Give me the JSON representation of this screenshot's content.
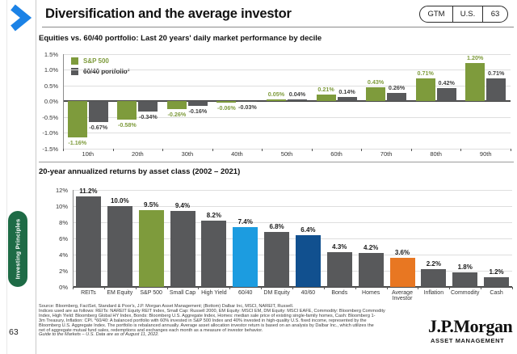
{
  "header": {
    "title": "Diversification and the average investor",
    "badge": {
      "gtm": "GTM",
      "region": "U.S.",
      "page": "63"
    }
  },
  "sidebar": {
    "tab_label": "Investing Principles",
    "page_number": "63"
  },
  "colors": {
    "chevron_blue": "#1B82E6",
    "tab_green": "#1E6B46",
    "sp500_green": "#7E9B3C",
    "portfolio_gray": "#58595B",
    "blue_6040": "#1C9CE0",
    "navy_4060": "#11508F",
    "orange_avg_investor": "#E87722"
  },
  "chart_data": [
    {
      "type": "bar",
      "title": "Equities vs. 60/40 portfolio: Last 20 years' daily market performance by decile",
      "categories": [
        "10th",
        "20th",
        "30th",
        "40th",
        "50th",
        "60th",
        "70th",
        "80th",
        "90th"
      ],
      "series": [
        {
          "name": "S&P 500",
          "color": "#7E9B3C",
          "values": [
            -1.16,
            -0.58,
            -0.26,
            -0.06,
            0.05,
            0.21,
            0.43,
            0.71,
            1.2
          ],
          "labels": [
            "-1.16%",
            "-0.58%",
            "-0.26%",
            "-0.06%",
            "0.05%",
            "0.21%",
            "0.43%",
            "0.71%",
            "1.20%"
          ]
        },
        {
          "name": "60/40 portfolio*",
          "color": "#58595B",
          "values": [
            -0.67,
            -0.34,
            -0.16,
            -0.03,
            0.04,
            0.14,
            0.26,
            0.42,
            0.71
          ],
          "labels": [
            "-0.67%",
            "-0.34%",
            "-0.16%",
            "-0.03%",
            "0.04%",
            "0.14%",
            "0.26%",
            "0.42%",
            "0.71%"
          ]
        }
      ],
      "ylim": [
        -1.5,
        1.5
      ],
      "ytick_values": [
        1.5,
        1.0,
        0.5,
        0.0,
        -0.5,
        -1.0,
        -1.5
      ],
      "ytick_labels": [
        "1.5%",
        "1.0%",
        "0.5%",
        "0.0%",
        "-0.5%",
        "-1.0%",
        "-1.5%"
      ],
      "grid": true,
      "legend_position": "top-left"
    },
    {
      "type": "bar",
      "title": "20-year annualized returns by asset class (2002 – 2021)",
      "categories": [
        "REITs",
        "EM Equity",
        "S&P 500",
        "Small Cap",
        "High Yield",
        "60/40",
        "DM Equity",
        "40/60",
        "Bonds",
        "Homes",
        "Average Investor",
        "Inflation",
        "Commodity",
        "Cash"
      ],
      "values": [
        11.2,
        10.0,
        9.5,
        9.4,
        8.2,
        7.4,
        6.8,
        6.4,
        4.3,
        4.2,
        3.6,
        2.2,
        1.8,
        1.2
      ],
      "labels": [
        "11.2%",
        "10.0%",
        "9.5%",
        "9.4%",
        "8.2%",
        "7.4%",
        "6.8%",
        "6.4%",
        "4.3%",
        "4.2%",
        "3.6%",
        "2.2%",
        "1.8%",
        "1.2%"
      ],
      "bar_colors": [
        "#58595B",
        "#58595B",
        "#7E9B3C",
        "#58595B",
        "#58595B",
        "#1C9CE0",
        "#58595B",
        "#11508F",
        "#58595B",
        "#58595B",
        "#E87722",
        "#58595B",
        "#58595B",
        "#58595B"
      ],
      "ylim": [
        0,
        12
      ],
      "ytick_values": [
        12,
        10,
        8,
        6,
        4,
        2,
        0
      ],
      "ytick_labels": [
        "12%",
        "10%",
        "8%",
        "6%",
        "4%",
        "2%",
        "0%"
      ],
      "grid": true
    }
  ],
  "footer": {
    "source_lines": [
      "Source: Bloomberg, FactSet, Standard & Poor's, J.P. Morgan Asset Management; (Bottom) Dalbar Inc, MSCI, NAREIT, Russell.",
      "Indices used are as follows: REITs: NAREIT Equity REIT Index, Small Cap: Russell 2000, EM Equity: MSCI EM, DM Equity: MSCI EAFE, Commodity: Bloomberg Commodity",
      "Index, High Yield: Bloomberg Global HY Index, Bonds: Bloomberg U.S. Aggregate Index, Homes: median sale price of existing single-family homes, Cash: Bloomberg 1-",
      "3m Treasury, Inflation: CPI. *60/40: A balanced portfolio with 60% invested in S&P 500 Index and 40% invested in high-quality U.S. fixed income, represented by the",
      "Bloomberg U.S. Aggregate Index. The portfolio is rebalanced annually. Average asset allocation investor return is based on an analysis by Dalbar Inc., which utilizes the",
      "net of aggregate mutual fund sales, redemptions and exchanges each month as a measure of investor behavior.",
      "Guide to the Markets – U.S. Data are as of August 11, 2022."
    ],
    "logo_title": "J.P.Morgan",
    "logo_subtitle": "ASSET MANAGEMENT"
  }
}
